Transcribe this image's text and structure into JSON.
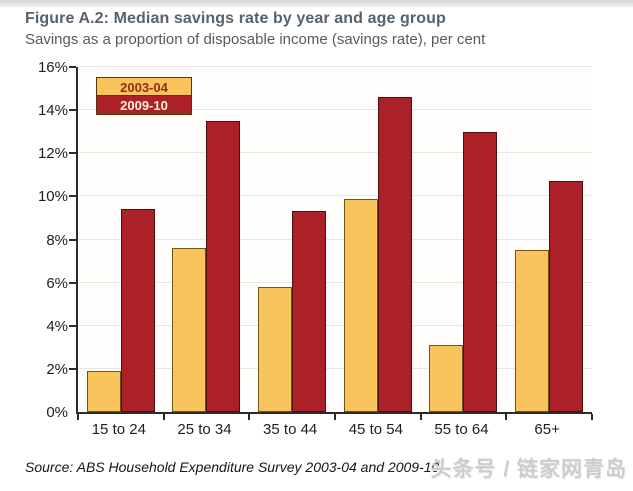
{
  "figure": {
    "title": "Figure A.2: Median savings rate by year and age group",
    "subtitle": "Savings as a proportion of disposable income (savings rate), per cent",
    "source_note": "Source: ABS Household Expenditure Survey 2003-04 and 2009-10",
    "watermark": "头条号 / 链家网青岛"
  },
  "chart_data": {
    "type": "bar",
    "title": "Median savings rate by year and age group",
    "categories": [
      "15 to 24",
      "25 to 34",
      "35 to 44",
      "45 to 54",
      "55 to 64",
      "65+"
    ],
    "series": [
      {
        "name": "2003-04",
        "color": "#F9C45C",
        "border_color": "#6f5616",
        "legend_text_color": "#932d1e",
        "values": [
          1.9,
          7.6,
          5.8,
          9.9,
          3.1,
          7.5
        ]
      },
      {
        "name": "2009-10",
        "color": "#AC2127",
        "border_color": "#4f0e10",
        "legend_text_color": "#fdf2d9",
        "values": [
          9.4,
          13.5,
          9.3,
          14.6,
          13.0,
          10.7
        ]
      }
    ],
    "xlabel": "",
    "ylabel": "per cent",
    "ylim": [
      0,
      16
    ],
    "ytick_step": 2,
    "ytick_labels": [
      "0%",
      "2%",
      "4%",
      "6%",
      "8%",
      "10%",
      "12%",
      "14%",
      "16%"
    ],
    "grid": true,
    "legend_position": "top-left"
  },
  "colors": {
    "title": "#56626e",
    "subtitle": "#565b61",
    "axis": "#2b2b2b",
    "gridline": "#e8e8e3",
    "watermark": "#cdcdcd"
  }
}
